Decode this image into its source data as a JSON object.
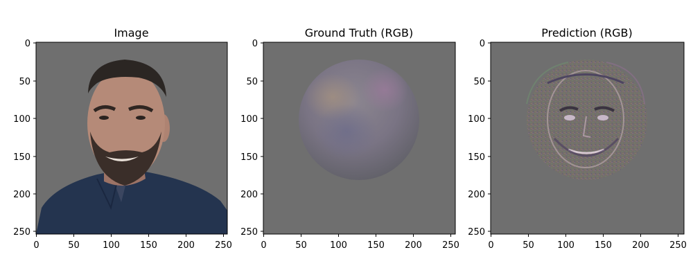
{
  "figure": {
    "background": "#ffffff",
    "panels": [
      {
        "id": "image",
        "title": "Image",
        "content": "portrait-photo",
        "x_ticks": [
          "0",
          "50",
          "100",
          "150",
          "200",
          "250"
        ],
        "y_ticks": [
          "0",
          "50",
          "100",
          "150",
          "200",
          "250"
        ]
      },
      {
        "id": "ground-truth",
        "title": "Ground Truth (RGB)",
        "content": "shaded-sphere",
        "x_ticks": [
          "0",
          "50",
          "100",
          "150",
          "200",
          "250"
        ],
        "y_ticks": [
          "0",
          "50",
          "100",
          "150",
          "200",
          "250"
        ]
      },
      {
        "id": "prediction",
        "title": "Prediction (RGB)",
        "content": "noisy-face-disk",
        "x_ticks": [
          "0",
          "50",
          "100",
          "150",
          "200",
          "250"
        ],
        "y_ticks": [
          "0",
          "50",
          "100",
          "150",
          "200",
          "250"
        ]
      }
    ],
    "colors": {
      "panel_background": "#6f6f6f",
      "shirt": "#24344f",
      "skin": "#b58a78",
      "hair": "#2b2623",
      "sphere_base": "#7b7680",
      "prediction_disk": "#75706a"
    }
  }
}
